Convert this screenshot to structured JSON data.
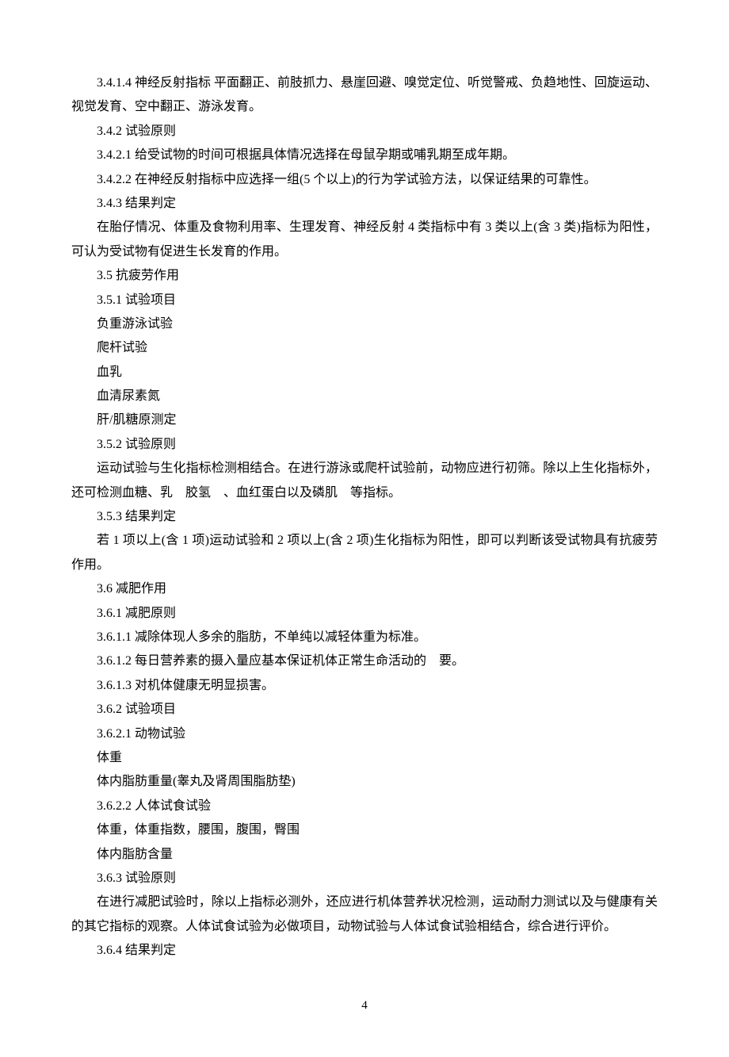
{
  "lines": {
    "l1": "3.4.1.4 神经反射指标 平面翻正、前肢抓力、悬崖回避、嗅觉定位、听觉警戒、负趋地性、回旋运动、视觉发育、空中翻正、游泳发育。",
    "l2": "3.4.2 试验原则",
    "l3": "3.4.2.1 给受试物的时间可根据具体情况选择在母鼠孕期或哺乳期至成年期。",
    "l4": "3.4.2.2 在神经反射指标中应选择一组(5 个以上)的行为学试验方法，以保证结果的可靠性。",
    "l5": "3.4.3 结果判定",
    "l6": "在胎仔情况、体重及食物利用率、生理发育、神经反射 4 类指标中有 3 类以上(含 3 类)指标为阳性，可认为受试物有促进生长发育的作用。",
    "l7": "3.5 抗疲劳作用",
    "l8": "3.5.1 试验项目",
    "l9": "负重游泳试验",
    "l10": "爬杆试验",
    "l11": "血乳",
    "l12": "血清尿素氮",
    "l13": "肝/肌糖原测定",
    "l14": "3.5.2 试验原则",
    "l15": "运动试验与生化指标检测相结合。在进行游泳或爬杆试验前，动物应进行初筛。除以上生化指标外，还可检测血糖、乳　胶氢　、血红蛋白以及磷肌　等指标。",
    "l16": "3.5.3 结果判定",
    "l17": "若 1 项以上(含 1 项)运动试验和 2 项以上(含 2 项)生化指标为阳性，即可以判断该受试物具有抗疲劳作用。",
    "l18": "3.6 减肥作用",
    "l19": "3.6.1 减肥原则",
    "l20": "3.6.1.1 减除体现人多余的脂肪，不单纯以减轻体重为标准。",
    "l21": "3.6.1.2 每日营养素的摄入量应基本保证机体正常生命活动的　要。",
    "l22": "3.6.1.3 对机体健康无明显损害。",
    "l23": "3.6.2 试验项目",
    "l24": "3.6.2.1 动物试验",
    "l25": "体重",
    "l26": "体内脂肪重量(睾丸及肾周围脂肪垫)",
    "l27": "3.6.2.2 人体试食试验",
    "l28": "体重，体重指数，腰围，腹围，臀围",
    "l29": "体内脂肪含量",
    "l30": "3.6.3 试验原则",
    "l31": "在进行减肥试验时，除以上指标必测外，还应进行机体营养状况检测，运动耐力测试以及与健康有关的其它指标的观察。人体试食试验为必做项目，动物试验与人体试食试验相结合，综合进行评价。",
    "l32": "3.6.4 结果判定"
  },
  "pageNumber": "4"
}
